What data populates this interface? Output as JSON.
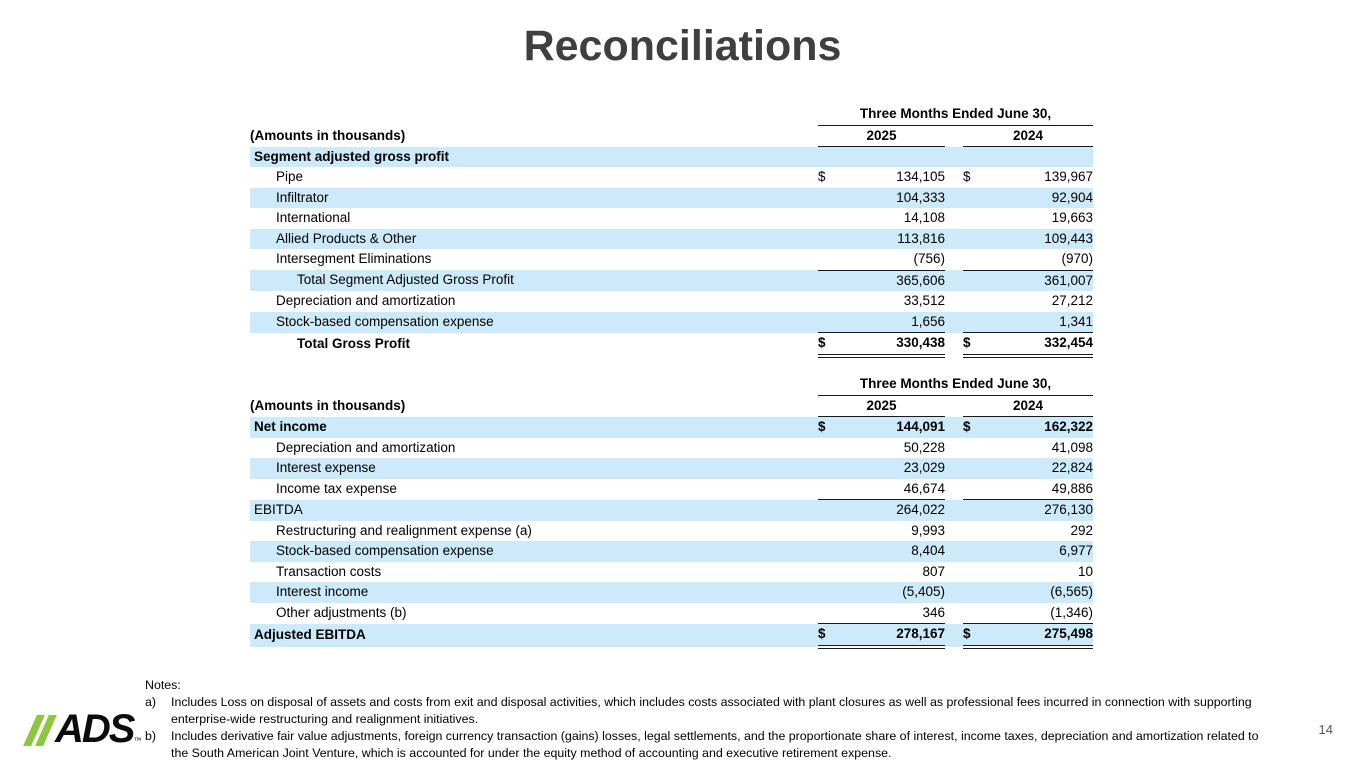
{
  "page": {
    "title": "Reconciliations",
    "page_number": "14",
    "logo_text": "ADS",
    "colors": {
      "row_highlight": "#cceaf9",
      "logo_green": "#8dc63f",
      "title_gray": "#3f3f3f"
    }
  },
  "tables": [
    {
      "period_header": "Three Months Ended June 30,",
      "amounts_label": "(Amounts in thousands)",
      "col_2025": "2025",
      "col_2024": "2024",
      "rows": [
        {
          "label": "Segment adjusted gross profit",
          "indent": 0,
          "bold": true,
          "bg": "blue",
          "d2025": "",
          "v2025": "",
          "d2024": "",
          "v2024": "",
          "rule": "none"
        },
        {
          "label": "Pipe",
          "indent": 1,
          "bold": false,
          "bg": "white",
          "d2025": "$",
          "v2025": "134,105",
          "d2024": "$",
          "v2024": "139,967",
          "rule": "none"
        },
        {
          "label": "Infiltrator",
          "indent": 1,
          "bold": false,
          "bg": "blue",
          "d2025": "",
          "v2025": "104,333",
          "d2024": "",
          "v2024": "92,904",
          "rule": "none"
        },
        {
          "label": "International",
          "indent": 1,
          "bold": false,
          "bg": "white",
          "d2025": "",
          "v2025": "14,108",
          "d2024": "",
          "v2024": "19,663",
          "rule": "none"
        },
        {
          "label": "Allied Products & Other",
          "indent": 1,
          "bold": false,
          "bg": "blue",
          "d2025": "",
          "v2025": "113,816",
          "d2024": "",
          "v2024": "109,443",
          "rule": "none"
        },
        {
          "label": "Intersegment Eliminations",
          "indent": 1,
          "bold": false,
          "bg": "white",
          "d2025": "",
          "v2025": "(756)",
          "d2024": "",
          "v2024": "(970)",
          "rule": "single"
        },
        {
          "label": "Total Segment Adjusted Gross Profit",
          "indent": 2,
          "bold": false,
          "bg": "blue",
          "d2025": "",
          "v2025": "365,606",
          "d2024": "",
          "v2024": "361,007",
          "rule": "none"
        },
        {
          "label": "Depreciation and amortization",
          "indent": 1,
          "bold": false,
          "bg": "white",
          "d2025": "",
          "v2025": "33,512",
          "d2024": "",
          "v2024": "27,212",
          "rule": "none"
        },
        {
          "label": "Stock-based compensation expense",
          "indent": 1,
          "bold": false,
          "bg": "blue",
          "d2025": "",
          "v2025": "1,656",
          "d2024": "",
          "v2024": "1,341",
          "rule": "single"
        },
        {
          "label": "Total Gross Profit",
          "indent": 2,
          "bold": true,
          "bg": "white",
          "d2025": "$",
          "v2025": "330,438",
          "d2024": "$",
          "v2024": "332,454",
          "rule": "double"
        }
      ]
    },
    {
      "period_header": "Three Months Ended June 30,",
      "amounts_label": "(Amounts in thousands)",
      "col_2025": "2025",
      "col_2024": "2024",
      "rows": [
        {
          "label": "Net income",
          "indent": 0,
          "bold": true,
          "bg": "blue",
          "d2025": "$",
          "v2025": "144,091",
          "d2024": "$",
          "v2024": "162,322",
          "rule": "none"
        },
        {
          "label": "Depreciation and amortization",
          "indent": 1,
          "bold": false,
          "bg": "white",
          "d2025": "",
          "v2025": "50,228",
          "d2024": "",
          "v2024": "41,098",
          "rule": "none"
        },
        {
          "label": "Interest expense",
          "indent": 1,
          "bold": false,
          "bg": "blue",
          "d2025": "",
          "v2025": "23,029",
          "d2024": "",
          "v2024": "22,824",
          "rule": "none"
        },
        {
          "label": "Income tax expense",
          "indent": 1,
          "bold": false,
          "bg": "white",
          "d2025": "",
          "v2025": "46,674",
          "d2024": "",
          "v2024": "49,886",
          "rule": "single"
        },
        {
          "label": "EBITDA",
          "indent": 0,
          "bold": false,
          "bg": "blue",
          "d2025": "",
          "v2025": "264,022",
          "d2024": "",
          "v2024": "276,130",
          "rule": "none"
        },
        {
          "label": "Restructuring and realignment expense (a)",
          "indent": 1,
          "bold": false,
          "bg": "white",
          "d2025": "",
          "v2025": "9,993",
          "d2024": "",
          "v2024": "292",
          "rule": "none"
        },
        {
          "label": "Stock-based compensation expense",
          "indent": 1,
          "bold": false,
          "bg": "blue",
          "d2025": "",
          "v2025": "8,404",
          "d2024": "",
          "v2024": "6,977",
          "rule": "none"
        },
        {
          "label": "Transaction costs",
          "indent": 1,
          "bold": false,
          "bg": "white",
          "d2025": "",
          "v2025": "807",
          "d2024": "",
          "v2024": "10",
          "rule": "none"
        },
        {
          "label": "Interest income",
          "indent": 1,
          "bold": false,
          "bg": "blue",
          "d2025": "",
          "v2025": "(5,405)",
          "d2024": "",
          "v2024": "(6,565)",
          "rule": "none"
        },
        {
          "label": "Other adjustments (b)",
          "indent": 1,
          "bold": false,
          "bg": "white",
          "d2025": "",
          "v2025": "346",
          "d2024": "",
          "v2024": "(1,346)",
          "rule": "single"
        },
        {
          "label": "Adjusted EBITDA",
          "indent": 0,
          "bold": true,
          "bg": "blue",
          "d2025": "$",
          "v2025": "278,167",
          "d2024": "$",
          "v2024": "275,498",
          "rule": "double"
        }
      ]
    }
  ],
  "notes": {
    "heading": "Notes:",
    "items": [
      {
        "marker": "a)",
        "text": "Includes Loss on disposal of assets and costs from exit and disposal activities, which includes costs associated with plant closures as well as professional fees incurred in connection with supporting enterprise-wide restructuring and realignment initiatives."
      },
      {
        "marker": "b)",
        "text": "Includes derivative fair value adjustments, foreign currency transaction (gains) losses, legal settlements, and the proportionate share of interest, income taxes, depreciation and amortization related to the South American Joint Venture, which is accounted for under the equity method of accounting and executive retirement expense."
      }
    ]
  }
}
